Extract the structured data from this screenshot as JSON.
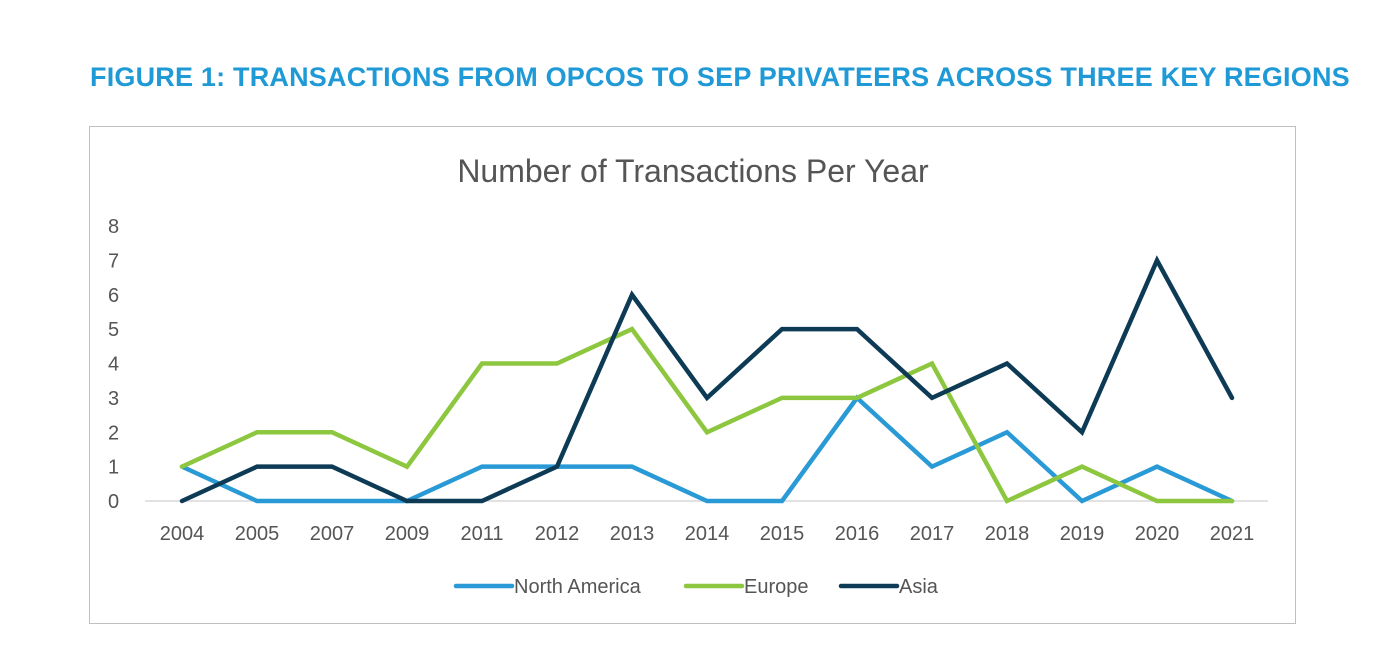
{
  "figure_title": "FIGURE 1: TRANSACTIONS FROM OPCOS TO SEP PRIVATEERS ACROSS THREE KEY REGIONS",
  "chart_data": {
    "type": "line",
    "title": "Number of Transactions Per Year",
    "xlabel": "",
    "ylabel": "",
    "categories": [
      "2004",
      "2005",
      "2007",
      "2009",
      "2011",
      "2012",
      "2013",
      "2014",
      "2015",
      "2016",
      "2017",
      "2018",
      "2019",
      "2020",
      "2021"
    ],
    "ylim": [
      0,
      8
    ],
    "yticks": [
      "0",
      "1",
      "2",
      "3",
      "4",
      "5",
      "6",
      "7",
      "8"
    ],
    "grid": "baseline only",
    "legend_position": "bottom",
    "series": [
      {
        "name": "North America",
        "color": "#2a9ad6",
        "values": [
          1,
          0,
          0,
          0,
          1,
          1,
          1,
          0,
          0,
          3,
          1,
          2,
          0,
          1,
          0
        ]
      },
      {
        "name": "Europe",
        "color": "#8dc63f",
        "values": [
          1,
          2,
          2,
          1,
          4,
          4,
          5,
          2,
          3,
          3,
          4,
          0,
          1,
          0,
          0
        ]
      },
      {
        "name": "Asia",
        "color": "#0d3a55",
        "values": [
          0,
          1,
          1,
          0,
          0,
          1,
          6,
          3,
          5,
          5,
          3,
          4,
          2,
          7,
          3
        ]
      }
    ]
  }
}
